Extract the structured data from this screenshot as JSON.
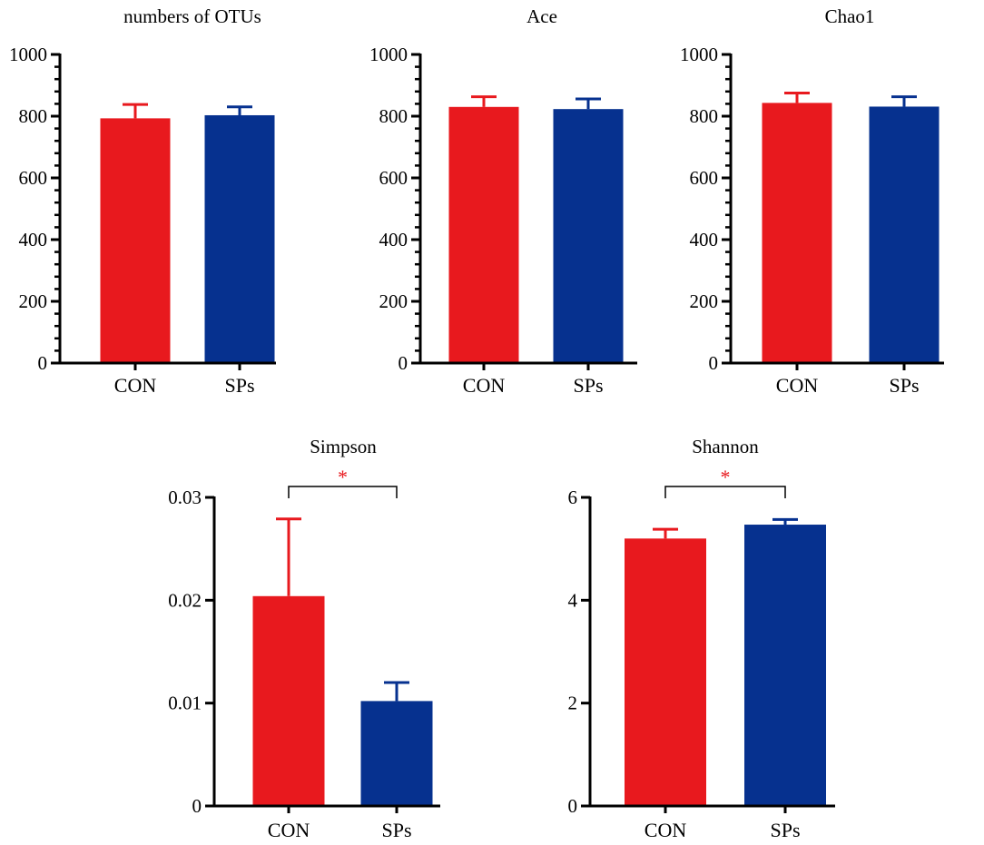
{
  "colors": {
    "con": "#e8191e",
    "sps": "#06318f",
    "axis": "#000000",
    "significance": "#e8191e"
  },
  "chart_data": [
    {
      "type": "bar",
      "title": "numbers of OTUs",
      "categories": [
        "CON",
        "SPs"
      ],
      "values": [
        793,
        803
      ],
      "errors": [
        45,
        27
      ],
      "ylim": [
        0,
        1000
      ],
      "yticks": [
        0,
        200,
        400,
        600,
        800,
        1000
      ],
      "ytick_labels": [
        "0",
        "200",
        "400",
        "600",
        "800",
        "1000"
      ],
      "minor_ticks": 4,
      "xlabel": "",
      "ylabel": "",
      "significance": null
    },
    {
      "type": "bar",
      "title": "Ace",
      "categories": [
        "CON",
        "SPs"
      ],
      "values": [
        830,
        823
      ],
      "errors": [
        33,
        33
      ],
      "ylim": [
        0,
        1000
      ],
      "yticks": [
        0,
        200,
        400,
        600,
        800,
        1000
      ],
      "ytick_labels": [
        "0",
        "200",
        "400",
        "600",
        "800",
        "1000"
      ],
      "minor_ticks": 4,
      "xlabel": "",
      "ylabel": "",
      "significance": null
    },
    {
      "type": "bar",
      "title": "Chao1",
      "categories": [
        "CON",
        "SPs"
      ],
      "values": [
        843,
        831
      ],
      "errors": [
        32,
        32
      ],
      "ylim": [
        0,
        1000
      ],
      "yticks": [
        0,
        200,
        400,
        600,
        800,
        1000
      ],
      "ytick_labels": [
        "0",
        "200",
        "400",
        "600",
        "800",
        "1000"
      ],
      "minor_ticks": 4,
      "xlabel": "",
      "ylabel": "",
      "significance": null
    },
    {
      "type": "bar",
      "title": "Simpson",
      "categories": [
        "CON",
        "SPs"
      ],
      "values": [
        0.0204,
        0.0102
      ],
      "errors": [
        0.0075,
        0.0018
      ],
      "ylim": [
        0,
        0.03
      ],
      "yticks": [
        0,
        0.01,
        0.02,
        0.03
      ],
      "ytick_labels": [
        "0",
        "0.01",
        "0.02",
        "0.03"
      ],
      "minor_ticks": 0,
      "xlabel": "",
      "ylabel": "",
      "significance": "*"
    },
    {
      "type": "bar",
      "title": "Shannon",
      "categories": [
        "CON",
        "SPs"
      ],
      "values": [
        5.2,
        5.47
      ],
      "errors": [
        0.18,
        0.1
      ],
      "ylim": [
        0,
        6
      ],
      "yticks": [
        0,
        2,
        4,
        6
      ],
      "ytick_labels": [
        "0",
        "2",
        "4",
        "6"
      ],
      "minor_ticks": 0,
      "xlabel": "",
      "ylabel": "",
      "significance": "*"
    }
  ]
}
